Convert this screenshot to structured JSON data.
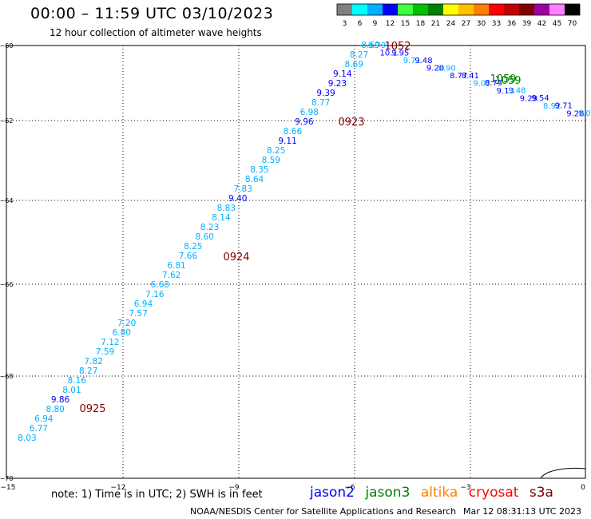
{
  "header": {
    "title": "00:00 – 11:59 UTC 03/10/2023",
    "subtitle": "12 hour collection of altimeter wave heights"
  },
  "legend": {
    "unit": "(ft)",
    "bins": [
      {
        "label": "3",
        "color": "#808080"
      },
      {
        "label": "6",
        "color": "#00ffff"
      },
      {
        "label": "9",
        "color": "#00b0ff"
      },
      {
        "label": "12",
        "color": "#0000ff"
      },
      {
        "label": "15",
        "color": "#40ff40"
      },
      {
        "label": "18",
        "color": "#00c000"
      },
      {
        "label": "21",
        "color": "#008000"
      },
      {
        "label": "24",
        "color": "#ffff00"
      },
      {
        "label": "27",
        "color": "#ffc000"
      },
      {
        "label": "30",
        "color": "#ff8000"
      },
      {
        "label": "33",
        "color": "#ff0000"
      },
      {
        "label": "36",
        "color": "#c00000"
      },
      {
        "label": "39",
        "color": "#800000"
      },
      {
        "label": "42",
        "color": "#a000a0"
      },
      {
        "label": "45",
        "color": "#ff80ff"
      },
      {
        "label": "70",
        "color": "#000000"
      }
    ]
  },
  "axes": {
    "lon_labels": [
      "−15",
      "−12",
      "−9",
      "−6",
      "−3",
      "0"
    ],
    "lat_labels": [
      "−60",
      "−62",
      "−64",
      "−66",
      "−68",
      "−70"
    ]
  },
  "passes": [
    {
      "label": "0923",
      "color": "#800000"
    },
    {
      "label": "0924",
      "color": "#800000"
    },
    {
      "label": "0925",
      "color": "#800000"
    },
    {
      "label": "1059",
      "color": "#008000"
    },
    {
      "label": "1059",
      "color": "#008000"
    },
    {
      "label": "1052",
      "color": "#800000"
    }
  ],
  "track_main": {
    "values": [
      "8.03",
      "6.77",
      "6.94",
      "8.80",
      "9.86",
      "8.01",
      "8.16",
      "8.27",
      "7.82",
      "7.59",
      "7.12",
      "6.80",
      "7.20",
      "7.57",
      "6.94",
      "7.16",
      "6.68",
      "7.62",
      "6.81",
      "7.66",
      "8.25",
      "8.60",
      "8.23",
      "8.14",
      "8.83",
      "9.40",
      "7.83",
      "8.64",
      "8.35",
      "8.59",
      "8.25",
      "9.11",
      "8.66",
      "9.96",
      "6.98",
      "8.77",
      "9.39",
      "9.23",
      "9.14",
      "8.69",
      "8.27",
      "8.69"
    ],
    "colors": [
      "#00b0ff",
      "#00b0ff",
      "#00b0ff",
      "#00b0ff",
      "#0000ff",
      "#00b0ff",
      "#00b0ff",
      "#00b0ff",
      "#00b0ff",
      "#00b0ff",
      "#00b0ff",
      "#00b0ff",
      "#00b0ff",
      "#00b0ff",
      "#00b0ff",
      "#00b0ff",
      "#00b0ff",
      "#00b0ff",
      "#00b0ff",
      "#00b0ff",
      "#00b0ff",
      "#00b0ff",
      "#00b0ff",
      "#00b0ff",
      "#00b0ff",
      "#0000ff",
      "#00b0ff",
      "#00b0ff",
      "#00b0ff",
      "#00b0ff",
      "#00b0ff",
      "#0000ff",
      "#00b0ff",
      "#0000ff",
      "#00b0ff",
      "#00b0ff",
      "#0000ff",
      "#0000ff",
      "#0000ff",
      "#00b0ff",
      "#00b0ff",
      "#00b0ff"
    ]
  },
  "track_east_note": "overlapping dense labels along eastern track",
  "footer": {
    "note": "note: 1) Time is in UTC; 2) SWH is in feet",
    "missions": [
      {
        "name": "jason2",
        "color": "#0000ff"
      },
      {
        "name": "jason3",
        "color": "#008000"
      },
      {
        "name": "altika",
        "color": "#ff8000"
      },
      {
        "name": "cryosat",
        "color": "#ff0000"
      },
      {
        "name": "s3a",
        "color": "#800000"
      }
    ],
    "credit": "NOAA/NESDIS Center for Satellite Applications and Research",
    "timestamp": "Mar 12 08:31:13 UTC 2023"
  }
}
